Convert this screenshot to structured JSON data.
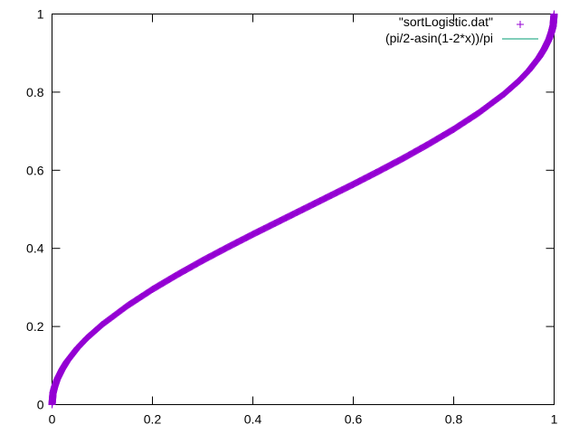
{
  "chart_data": {
    "type": "scatter",
    "title": "",
    "xlabel": "",
    "ylabel": "",
    "xlim": [
      0,
      1
    ],
    "ylim": [
      0,
      1
    ],
    "x_ticks": [
      "0",
      "0.2",
      "0.4",
      "0.6",
      "0.8",
      "1"
    ],
    "y_ticks": [
      "0",
      "0.2",
      "0.4",
      "0.6",
      "0.8",
      "1"
    ],
    "grid": false,
    "legend_position": "top-right",
    "series": [
      {
        "name": "\"sortLogistic.dat\"",
        "style": "points",
        "marker": "+",
        "color": "#9400d3",
        "x": [
          0.0,
          0.002,
          0.005,
          0.01,
          0.02,
          0.03,
          0.05,
          0.07,
          0.1,
          0.15,
          0.2,
          0.25,
          0.3,
          0.35,
          0.4,
          0.45,
          0.5,
          0.55,
          0.6,
          0.65,
          0.7,
          0.75,
          0.8,
          0.85,
          0.9,
          0.93,
          0.95,
          0.97,
          0.98,
          0.99,
          0.995,
          0.998,
          1.0
        ],
        "y": [
          0.0,
          0.03,
          0.045,
          0.064,
          0.09,
          0.111,
          0.144,
          0.171,
          0.205,
          0.253,
          0.295,
          0.333,
          0.369,
          0.403,
          0.436,
          0.468,
          0.5,
          0.532,
          0.564,
          0.597,
          0.631,
          0.667,
          0.705,
          0.747,
          0.795,
          0.829,
          0.856,
          0.889,
          0.91,
          0.936,
          0.955,
          0.97,
          1.0
        ]
      },
      {
        "name": "(pi/2-asin(1-2*x))/pi",
        "style": "line",
        "color": "#009e73",
        "function": "(pi/2-asin(1-2*x))/pi"
      }
    ]
  }
}
